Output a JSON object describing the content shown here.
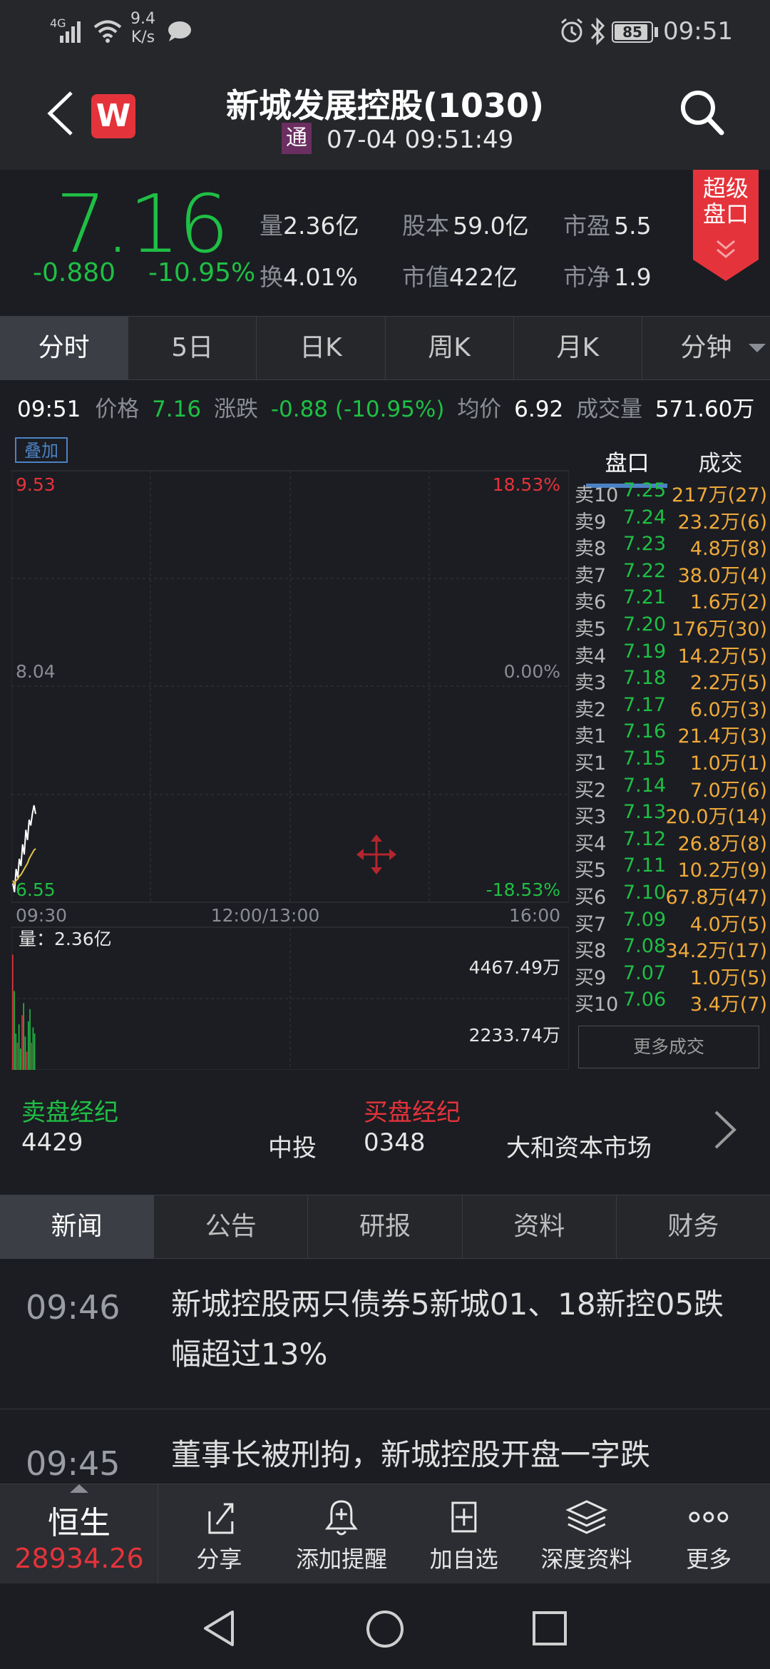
{
  "status_bar": {
    "network": "4G",
    "speed_value": "9.4",
    "speed_unit": "K/s",
    "battery": "85",
    "time": "09:51"
  },
  "header": {
    "app_badge": "W",
    "title": "新城发展控股(1030)",
    "tong_badge": "通",
    "datetime": "07-04 09:51:49"
  },
  "quote": {
    "price": "7.16",
    "change": "-0.880",
    "change_pct": "-10.95%",
    "stats": [
      {
        "label": "量",
        "value": "2.36亿"
      },
      {
        "label": "股本",
        "value": "59.0亿"
      },
      {
        "label": "市盈",
        "value": "5.5"
      },
      {
        "label": "换",
        "value": "4.01%"
      },
      {
        "label": "市值",
        "value": "422亿"
      },
      {
        "label": "市净",
        "value": "1.9"
      }
    ],
    "super_badge_line1": "超级",
    "super_badge_line2": "盘口"
  },
  "period_tabs": [
    {
      "label": "分时",
      "active": true
    },
    {
      "label": "5日",
      "active": false
    },
    {
      "label": "日K",
      "active": false
    },
    {
      "label": "周K",
      "active": false
    },
    {
      "label": "月K",
      "active": false
    },
    {
      "label": "分钟",
      "active": false
    }
  ],
  "info_line": {
    "time": "09:51",
    "price_label": "价格",
    "price": "7.16",
    "change_label": "涨跌",
    "change": "-0.88 (-10.95%)",
    "avg_label": "均价",
    "avg": "6.92",
    "volume_label": "成交量",
    "volume": "571.60万"
  },
  "chart": {
    "overlay_label": "叠加",
    "y_top_left": "9.53",
    "y_top_right": "18.53%",
    "y_mid_left": "8.04",
    "y_mid_right": "0.00%",
    "y_bottom_left": "6.55",
    "y_bottom_right": "-18.53%",
    "x_start": "09:30",
    "x_mid": "12:00/13:00",
    "x_end": "16:00",
    "volume_label": "量：2.36亿",
    "vol_top": "4467.49万",
    "vol_mid": "2233.74万"
  },
  "chart_data": {
    "type": "line",
    "x_labels": [
      "09:30",
      "12:00/13:00",
      "16:00"
    ],
    "ylim": [
      6.55,
      9.53
    ],
    "series": [
      {
        "values": [
          6.68,
          6.62,
          6.78,
          6.72,
          6.85,
          6.8,
          6.95,
          6.88,
          7.05,
          6.98,
          7.12,
          7.08,
          7.16,
          7.22,
          7.16
        ]
      },
      {
        "values": [
          6.7,
          6.68,
          6.7,
          6.71,
          6.73,
          6.74,
          6.76,
          6.78,
          6.8,
          6.82,
          6.85,
          6.87,
          6.89,
          6.91,
          6.92
        ]
      }
    ],
    "volume": [
      3800,
      2600,
      1200,
      900,
      1500,
      700,
      1800,
      2200,
      1100,
      600,
      1600,
      2000,
      900,
      1400,
      1200
    ]
  },
  "order_book": {
    "tabs": [
      "盘口",
      "成交"
    ],
    "rows": [
      {
        "label": "卖10",
        "price": "7.25",
        "vol": "217万(27)"
      },
      {
        "label": "卖9",
        "price": "7.24",
        "vol": "23.2万(6)"
      },
      {
        "label": "卖8",
        "price": "7.23",
        "vol": "4.8万(8)"
      },
      {
        "label": "卖7",
        "price": "7.22",
        "vol": "38.0万(4)"
      },
      {
        "label": "卖6",
        "price": "7.21",
        "vol": "1.6万(2)"
      },
      {
        "label": "卖5",
        "price": "7.20",
        "vol": "176万(30)"
      },
      {
        "label": "卖4",
        "price": "7.19",
        "vol": "14.2万(5)"
      },
      {
        "label": "卖3",
        "price": "7.18",
        "vol": "2.2万(5)"
      },
      {
        "label": "卖2",
        "price": "7.17",
        "vol": "6.0万(3)"
      },
      {
        "label": "卖1",
        "price": "7.16",
        "vol": "21.4万(3)"
      },
      {
        "label": "买1",
        "price": "7.15",
        "vol": "1.0万(1)"
      },
      {
        "label": "买2",
        "price": "7.14",
        "vol": "7.0万(6)"
      },
      {
        "label": "买3",
        "price": "7.13",
        "vol": "20.0万(14)"
      },
      {
        "label": "买4",
        "price": "7.12",
        "vol": "26.8万(8)"
      },
      {
        "label": "买5",
        "price": "7.11",
        "vol": "10.2万(9)"
      },
      {
        "label": "买6",
        "price": "7.10",
        "vol": "67.8万(47)"
      },
      {
        "label": "买7",
        "price": "7.09",
        "vol": "4.0万(5)"
      },
      {
        "label": "买8",
        "price": "7.08",
        "vol": "34.2万(17)"
      },
      {
        "label": "买9",
        "price": "7.07",
        "vol": "1.0万(5)"
      },
      {
        "label": "买10",
        "price": "7.06",
        "vol": "3.4万(7)"
      }
    ],
    "more_label": "更多成交"
  },
  "brokers": {
    "sell_title": "卖盘经纪",
    "sell_code": "4429",
    "sell_name": "中投",
    "buy_title": "买盘经纪",
    "buy_code": "0348",
    "buy_name": "大和资本市场"
  },
  "news_tabs": [
    {
      "label": "新闻",
      "active": true
    },
    {
      "label": "公告",
      "active": false
    },
    {
      "label": "研报",
      "active": false
    },
    {
      "label": "资料",
      "active": false
    },
    {
      "label": "财务",
      "active": false
    }
  ],
  "news": [
    {
      "time": "09:46",
      "title": "新城控股两只债券5新城01、18新控05跌幅超过13%"
    },
    {
      "time": "09:45",
      "title": "董事长被刑拘，新城控股开盘一字跌"
    }
  ],
  "toolbar": {
    "index_name": "恒生",
    "index_value": "28934.26",
    "items": [
      {
        "label": "分享",
        "icon": "share-icon"
      },
      {
        "label": "添加提醒",
        "icon": "bell-plus-icon"
      },
      {
        "label": "加自选",
        "icon": "add-box-icon"
      },
      {
        "label": "深度资料",
        "icon": "layers-icon"
      },
      {
        "label": "更多",
        "icon": "more-dots-icon"
      }
    ]
  },
  "colors": {
    "up": "#e5333b",
    "down": "#1fbf45",
    "volume_text": "#f0a93a",
    "background": "#1b1d22"
  }
}
